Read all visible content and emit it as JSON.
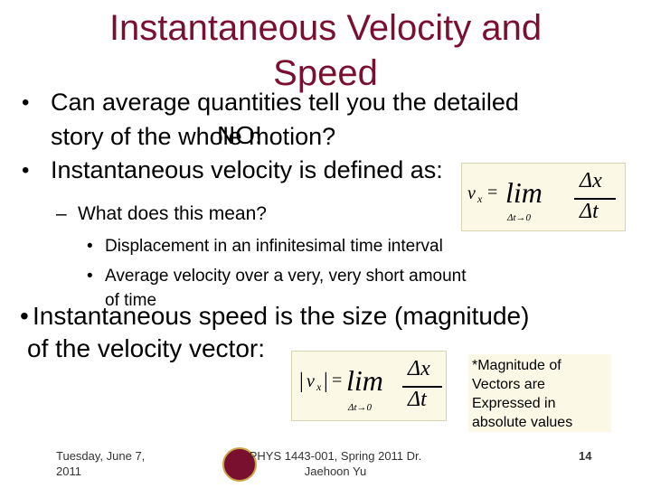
{
  "slide": {
    "title": "Instantaneous Velocity and Speed",
    "bullet_glyph": "•",
    "dash_glyph": "–",
    "q1_line1": "Can average quantities tell you the detailed",
    "q1_line2": "story of the whole motion?",
    "no_answer": "NO!",
    "q2": "Instantaneous velocity is defined as:",
    "sub": "What does this mean?",
    "sub1": "Displacement in an infinitesimal time interval",
    "sub2a": "Average velocity over a very, very short amount",
    "sub2b": "of time",
    "speed_line1": "Instantaneous speed is the size (magnitude)",
    "speed_line2": "of the velocity vector:",
    "note": "*Magnitude of Vectors are Expressed in absolute values"
  },
  "equations": {
    "v_symbol": "v",
    "x_sub": "x",
    "equals": "=",
    "lim": "lim",
    "lim_sub": "Δt→0",
    "numerator": "Δx",
    "denominator": "Δt",
    "bar": "|"
  },
  "footer": {
    "date": "Tuesday, June 7, 2011",
    "course": "PHYS 1443-001, Spring 2011 Dr. Jaehoon Yu",
    "page_number": "14"
  },
  "colors": {
    "title": "#7a1030",
    "equation_bg": "#fbf9e6",
    "seal": "#7a1030"
  }
}
